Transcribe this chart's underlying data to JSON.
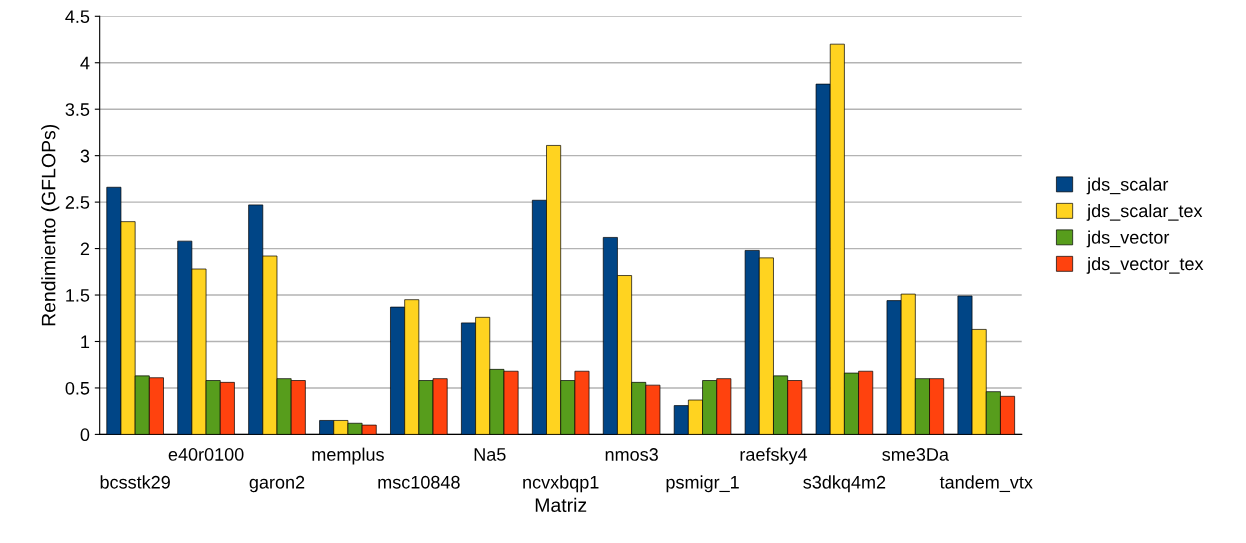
{
  "chart_data": {
    "type": "bar",
    "xlabel": "Matriz",
    "ylabel": "Rendimiento (GFLOPs)",
    "categories": [
      "bcsstk29",
      "e40r0100",
      "garon2",
      "memplus",
      "msc10848",
      "Na5",
      "ncvxbqp1",
      "nmos3",
      "psmigr_1",
      "raefsky4",
      "s3dkq4m2",
      "sme3Da",
      "tandem_vtx"
    ],
    "series": [
      {
        "name": "jds_scalar",
        "color": "#004586",
        "values": [
          2.66,
          2.08,
          2.47,
          0.15,
          1.37,
          1.2,
          2.52,
          2.12,
          0.31,
          1.98,
          3.77,
          1.44,
          1.49
        ]
      },
      {
        "name": "jds_scalar_tex",
        "color": "#ffd320",
        "values": [
          2.29,
          1.78,
          1.92,
          0.15,
          1.45,
          1.26,
          3.11,
          1.71,
          0.37,
          1.9,
          4.2,
          1.51,
          1.13
        ]
      },
      {
        "name": "jds_vector",
        "color": "#579d1c",
        "values": [
          0.63,
          0.58,
          0.6,
          0.12,
          0.58,
          0.7,
          0.58,
          0.56,
          0.58,
          0.63,
          0.66,
          0.6,
          0.46
        ]
      },
      {
        "name": "jds_vector_tex",
        "color": "#ff420e",
        "values": [
          0.61,
          0.56,
          0.58,
          0.1,
          0.6,
          0.68,
          0.68,
          0.53,
          0.6,
          0.58,
          0.68,
          0.6,
          0.41
        ]
      }
    ],
    "ylim": [
      0,
      4.5
    ],
    "yticks": [
      0,
      0.5,
      1,
      1.5,
      2,
      2.5,
      3,
      3.5,
      4,
      4.5
    ],
    "grid": "y",
    "legend": "right"
  }
}
